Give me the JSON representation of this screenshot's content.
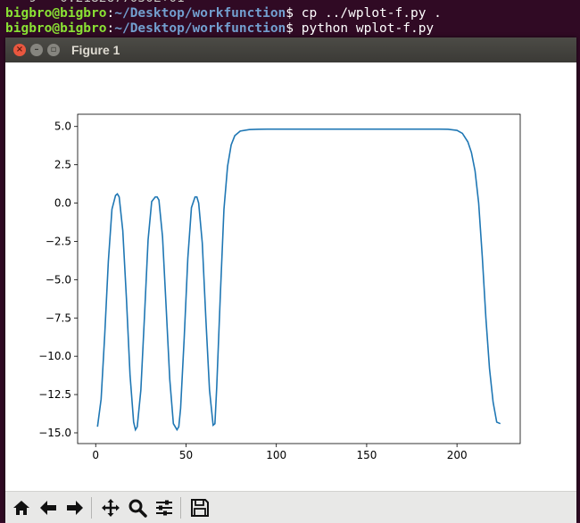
{
  "terminal": {
    "lines": [
      {
        "user": "bigbro@bigbro",
        "path": "~/Desktop/workfunction",
        "cmd": "$ cp ../wplot-f.py ."
      },
      {
        "user": "bigbro@bigbro",
        "path": "~/Desktop/workfunction",
        "cmd": "$ python wplot-f.py"
      }
    ]
  },
  "window": {
    "title": "Figure 1",
    "close_glyph": "×",
    "min_glyph": "–",
    "max_glyph": "▫"
  },
  "toolbar": {
    "buttons": [
      "home-icon",
      "back-arrow-icon",
      "forward-arrow-icon",
      "pan-icon",
      "zoom-icon",
      "subplots-icon",
      "save-icon"
    ]
  },
  "colors": {
    "line": "#1f77b4",
    "terminal_bg": "#300a24",
    "titlebar": "#3c3b37"
  },
  "chart_data": {
    "type": "line",
    "title": "",
    "xlabel": "",
    "ylabel": "",
    "xlim": [
      -10,
      235
    ],
    "ylim": [
      -15.7,
      5.8
    ],
    "xticks": [
      0,
      50,
      100,
      150,
      200
    ],
    "xtick_labels": [
      "0",
      "50",
      "100",
      "150",
      "200"
    ],
    "yticks": [
      5.0,
      2.5,
      0.0,
      -2.5,
      -5.0,
      -7.5,
      -10.0,
      -12.5,
      -15.0
    ],
    "ytick_labels": [
      "5.0",
      "2.5",
      "0.0",
      "−2.5",
      "−5.0",
      "−7.5",
      "−10.0",
      "−12.5",
      "−15.0"
    ],
    "grid": false,
    "series": [
      {
        "x": [
          1,
          3,
          5,
          7,
          9,
          11,
          12,
          13,
          15,
          17,
          19,
          21,
          22,
          23,
          25,
          27,
          29,
          31,
          33,
          34,
          35,
          37,
          39,
          41,
          43,
          45,
          46,
          47,
          49,
          51,
          53,
          55,
          56,
          57,
          59,
          61,
          63,
          65,
          66,
          67,
          69,
          71,
          73,
          75,
          77,
          80,
          85,
          90,
          95,
          100,
          110,
          120,
          130,
          140,
          150,
          160,
          170,
          180,
          190,
          195,
          200,
          203,
          206,
          208,
          210,
          212,
          214,
          216,
          218,
          220,
          222,
          224
        ],
        "y": [
          -14.6,
          -12.8,
          -8.6,
          -3.8,
          -0.4,
          0.5,
          0.6,
          0.4,
          -1.8,
          -6.2,
          -11.2,
          -14.3,
          -14.8,
          -14.6,
          -12.2,
          -7.4,
          -2.4,
          0.1,
          0.4,
          0.4,
          0.2,
          -2.2,
          -6.8,
          -11.5,
          -14.4,
          -14.8,
          -14.6,
          -13.4,
          -8.8,
          -3.6,
          -0.3,
          0.4,
          0.4,
          0.0,
          -2.6,
          -7.6,
          -12.2,
          -14.5,
          -14.4,
          -12.0,
          -6.0,
          -0.4,
          2.4,
          3.8,
          4.4,
          4.7,
          4.8,
          4.82,
          4.83,
          4.83,
          4.83,
          4.83,
          4.83,
          4.83,
          4.83,
          4.83,
          4.83,
          4.83,
          4.83,
          4.82,
          4.75,
          4.55,
          4.0,
          3.3,
          2.1,
          0.0,
          -3.5,
          -7.5,
          -10.8,
          -13.0,
          -14.3,
          -14.4
        ]
      }
    ]
  }
}
